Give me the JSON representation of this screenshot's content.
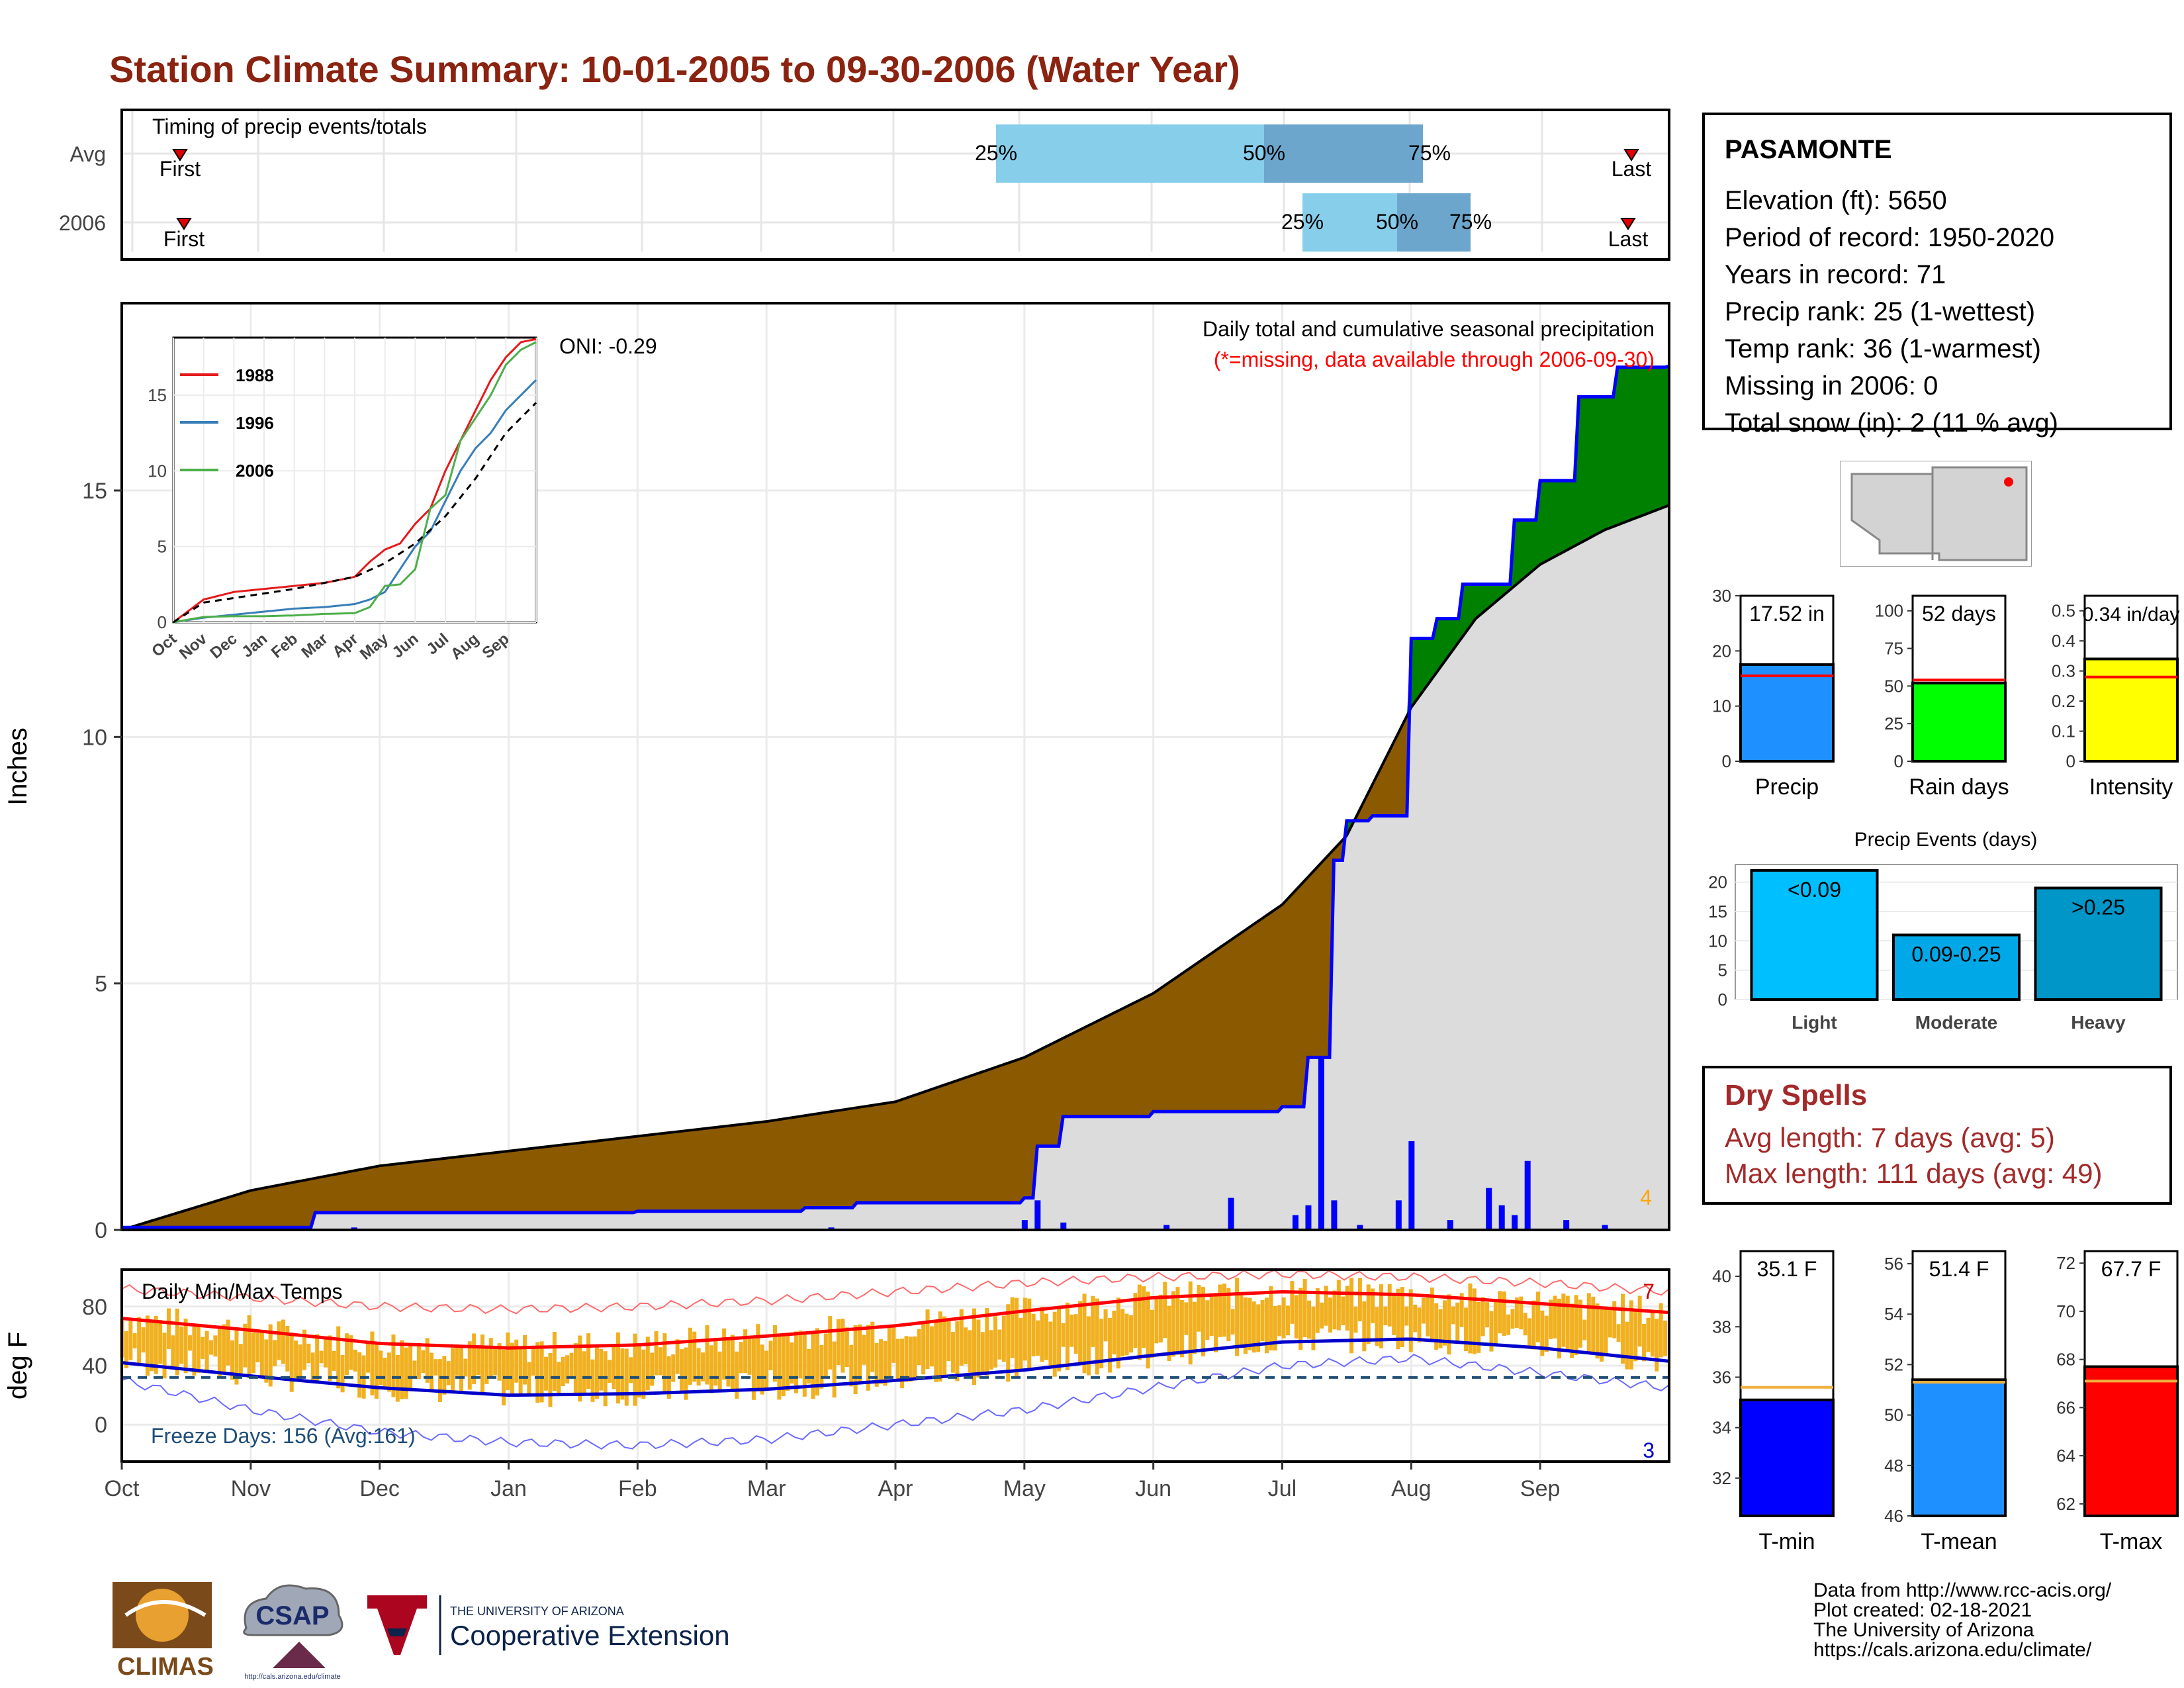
{
  "title": "Station Climate Summary: 10-01-2005 to 09-30-2006 (Water Year)",
  "colors": {
    "title": "#8b2310",
    "wetter": "#008000",
    "drier": "#8b5a00",
    "avg_fill": "#dcdcdc",
    "precip_bar": "#1e90ff",
    "raindays_bar": "#00ff00",
    "intensity_bar": "#ffff00",
    "tmin": "#0000ff",
    "tmean": "#1e90ff",
    "tmax": "#ff0000",
    "temp_bars": "#f0b020",
    "light": "#00bfff",
    "moderate": "#00a8e8",
    "heavy": "#0096c8"
  },
  "timing_panel": {
    "title": "Timing of precip events/totals",
    "rows": [
      {
        "label": "Avg",
        "first": "First",
        "last": "Last",
        "p25": "25%",
        "p50": "50%",
        "p75": "75%"
      },
      {
        "label": "2006",
        "first": "First",
        "last": "Last",
        "p25": "25%",
        "p50": "50%",
        "p75": "75%"
      }
    ]
  },
  "station": {
    "name": "PASAMONTE",
    "elevation": "Elevation (ft): 5650",
    "period": "Period of record: 1950-2020",
    "years": "Years in record: 71",
    "precip_rank": "Precip rank: 25 (1-wettest)",
    "temp_rank": "Temp rank: 36 (1-warmest)",
    "missing": "Missing in 2006: 0",
    "snow": "Total snow (in): 2 (11 % avg)"
  },
  "main_panel": {
    "ylabel": "Inches",
    "oni": "ONI: -0.29",
    "subtitle": "Daily total and cumulative seasonal precipitation",
    "missing_note": "(*=missing, data available through 2006-09-30)",
    "max_marker": "4"
  },
  "temp_panel": {
    "ylabel": "deg F",
    "title": "Daily Min/Max Temps",
    "freeze": "Freeze Days: 156 (Avg:161)",
    "count_high": "7",
    "count_low": "3"
  },
  "month_labels": [
    "Oct",
    "Nov",
    "Dec",
    "Jan",
    "Feb",
    "Mar",
    "Apr",
    "May",
    "Jun",
    "Jul",
    "Aug",
    "Sep"
  ],
  "chart_data": [
    {
      "type": "line",
      "name": "cumulative precipitation",
      "ylabel": "Inches",
      "ylim": [
        0,
        18.8
      ],
      "yticks": [
        0,
        5,
        10,
        15
      ],
      "x_unit": "month",
      "observed_2006": {
        "x": [
          0,
          1.5,
          2.0,
          4,
          5.3,
          5.7,
          7.0,
          7.1,
          7.3,
          8,
          9,
          9.2,
          9.4,
          9.5,
          9.7,
          10.0,
          10.2,
          10.4,
          10.8,
          11.0,
          11.3,
          11.6,
          12
        ],
        "y": [
          0.05,
          0.35,
          0.35,
          0.38,
          0.45,
          0.55,
          0.65,
          1.7,
          2.3,
          2.4,
          2.5,
          3.5,
          7.5,
          8.3,
          8.4,
          12.0,
          12.4,
          13.1,
          14.4,
          15.2,
          16.9,
          17.5,
          17.52
        ]
      },
      "average": {
        "x": [
          0,
          1,
          2,
          3,
          4,
          5,
          6,
          7,
          8,
          9,
          9.5,
          10,
          10.5,
          11,
          11.5,
          12
        ],
        "y": [
          0,
          0.8,
          1.3,
          1.6,
          1.9,
          2.2,
          2.6,
          3.5,
          4.8,
          6.6,
          8.0,
          10.6,
          12.4,
          13.5,
          14.2,
          14.7
        ]
      },
      "daily_spikes": {
        "x": [
          1.8,
          5.5,
          7.0,
          7.1,
          7.3,
          8.1,
          8.6,
          9.1,
          9.2,
          9.3,
          9.4,
          9.6,
          9.9,
          10.0,
          10.3,
          10.6,
          10.7,
          10.8,
          10.9,
          11.2,
          11.5
        ],
        "y": [
          0.05,
          0.05,
          0.2,
          0.6,
          0.15,
          0.1,
          0.65,
          0.3,
          0.5,
          3.5,
          0.6,
          0.1,
          0.6,
          1.8,
          0.2,
          0.85,
          0.5,
          0.3,
          1.4,
          0.2,
          0.1
        ]
      },
      "series": [
        {
          "name": "1988"
        },
        {
          "name": "1996"
        },
        {
          "name": "2006"
        }
      ]
    },
    {
      "type": "line",
      "name": "inset cumulative precip comparison",
      "ylim": [
        0,
        18.8
      ],
      "yticks": [
        0,
        5,
        10,
        15
      ],
      "xticks": [
        "Oct",
        "Nov",
        "Dec",
        "Jan",
        "Feb",
        "Mar",
        "Apr",
        "May",
        "Jun",
        "Jul",
        "Aug",
        "Sep"
      ],
      "series": [
        {
          "name": "1988",
          "color": "#e41a1c",
          "x": [
            0,
            1,
            2,
            3,
            4,
            5,
            6,
            6.5,
            7,
            7.5,
            8,
            8.5,
            9,
            9.5,
            10,
            10.5,
            11,
            11.5,
            12
          ],
          "y": [
            0,
            1.5,
            2.0,
            2.2,
            2.4,
            2.6,
            3.0,
            4.0,
            4.8,
            5.2,
            6.5,
            7.5,
            10.0,
            12.0,
            14.0,
            16.0,
            17.5,
            18.5,
            18.7
          ]
        },
        {
          "name": "1996",
          "color": "#377eb8",
          "x": [
            0,
            1,
            2,
            3,
            4,
            5,
            6,
            6.5,
            7,
            7.5,
            8,
            8.5,
            9,
            9.5,
            10,
            10.5,
            11,
            11.5,
            12
          ],
          "y": [
            0,
            0.3,
            0.5,
            0.7,
            0.9,
            1.0,
            1.2,
            1.5,
            2.0,
            3.5,
            5.0,
            6.0,
            8.0,
            10.0,
            11.5,
            12.5,
            14.0,
            15.0,
            16.0
          ]
        },
        {
          "name": "2006",
          "color": "#4daf4a",
          "x": [
            0,
            1,
            2,
            3,
            4,
            5,
            6,
            6.5,
            7,
            7.5,
            8,
            8.5,
            9,
            9.5,
            10,
            10.5,
            11,
            11.5,
            12
          ],
          "y": [
            0,
            0.35,
            0.4,
            0.4,
            0.45,
            0.55,
            0.6,
            1.0,
            2.4,
            2.5,
            3.5,
            7.5,
            8.4,
            12.0,
            13.5,
            15.0,
            17.0,
            18.0,
            18.5
          ]
        },
        {
          "name": "average",
          "color": "#000000",
          "x": [
            0,
            1,
            2,
            3,
            4,
            5,
            6,
            7,
            8,
            9,
            10,
            11,
            12
          ],
          "y": [
            0,
            1.3,
            1.6,
            1.9,
            2.2,
            2.6,
            3.0,
            3.9,
            5.2,
            7.0,
            9.5,
            12.5,
            14.5
          ]
        }
      ]
    },
    {
      "type": "bar",
      "name": "Precip",
      "value": 17.52,
      "label": "17.52 in",
      "average": 15.5,
      "ylim": [
        0,
        30
      ],
      "yticks": [
        0,
        10,
        20,
        30
      ],
      "xlabel": "Precip"
    },
    {
      "type": "bar",
      "name": "Rain days",
      "value": 52,
      "label": "52 days",
      "average": 54,
      "ylim": [
        0,
        110
      ],
      "yticks": [
        0,
        25,
        50,
        75,
        100
      ],
      "xlabel": "Rain days"
    },
    {
      "type": "bar",
      "name": "Intensity",
      "value": 0.34,
      "label": "0.34 in/day",
      "average": 0.28,
      "ylim": [
        0,
        0.55
      ],
      "yticks": [
        0.0,
        0.1,
        0.2,
        0.3,
        0.4,
        0.5
      ],
      "xlabel": "Intensity"
    },
    {
      "type": "bar",
      "title": "Precip Events (days)",
      "categories": [
        "Light",
        "Moderate",
        "Heavy"
      ],
      "values": [
        22,
        11,
        19
      ],
      "labels": [
        "<0.09",
        "0.09-0.25",
        ">0.25"
      ],
      "ylim": [
        0,
        23
      ],
      "yticks": [
        0,
        5,
        10,
        15,
        20
      ]
    },
    {
      "type": "line",
      "name": "Daily Min/Max Temps",
      "ylabel": "deg F",
      "ylim": [
        -25,
        105
      ],
      "yticks": [
        0,
        40,
        80
      ],
      "avg_max": {
        "x": [
          0,
          1,
          2,
          3,
          4,
          5,
          6,
          7,
          8,
          9,
          10,
          11,
          12
        ],
        "y": [
          72,
          64,
          55,
          52,
          54,
          60,
          67,
          77,
          86,
          90,
          88,
          82,
          76
        ]
      },
      "avg_min": {
        "x": [
          0,
          1,
          2,
          3,
          4,
          5,
          6,
          7,
          8,
          9,
          10,
          11,
          12
        ],
        "y": [
          42,
          33,
          25,
          20,
          21,
          24,
          30,
          37,
          47,
          56,
          58,
          52,
          43
        ]
      },
      "record_max": {
        "x": [
          0,
          1,
          2,
          3,
          4,
          5,
          6,
          7,
          8,
          9,
          10,
          11,
          12
        ],
        "y": [
          92,
          86,
          80,
          78,
          80,
          84,
          90,
          96,
          100,
          102,
          100,
          96,
          90
        ]
      },
      "record_min": {
        "x": [
          0,
          1,
          2,
          3,
          4,
          5,
          6,
          7,
          8,
          9,
          10,
          11,
          12
        ],
        "y": [
          30,
          10,
          -5,
          -12,
          -14,
          -10,
          0,
          10,
          25,
          40,
          45,
          35,
          25
        ]
      },
      "freeze_threshold": 32
    },
    {
      "type": "bar",
      "name": "T-min",
      "value": 35.1,
      "label": "35.1 F",
      "average": 35.6,
      "ylim": [
        30.5,
        41
      ],
      "yticks": [
        32,
        34,
        36,
        38,
        40
      ],
      "xlabel": "T-min"
    },
    {
      "type": "bar",
      "name": "T-mean",
      "value": 51.4,
      "label": "51.4 F",
      "average": 51.3,
      "ylim": [
        46,
        56.5
      ],
      "yticks": [
        46,
        48,
        50,
        52,
        54,
        56
      ],
      "xlabel": "T-mean"
    },
    {
      "type": "bar",
      "name": "T-max",
      "value": 67.7,
      "label": "67.7 F",
      "average": 67.1,
      "ylim": [
        61.5,
        72.5
      ],
      "yticks": [
        62,
        64,
        66,
        68,
        70,
        72
      ],
      "xlabel": "T-max"
    }
  ],
  "dry_spells": {
    "title": "Dry Spells",
    "avg": "Avg length: 7 days (avg: 5)",
    "max": "Max length: 111 days (avg: 49)"
  },
  "footer": {
    "line1": "Data from http://www.rcc-acis.org/",
    "line2": "Plot created: 02-18-2021",
    "line3": "The University of Arizona",
    "line4": "https://cals.arizona.edu/climate/"
  },
  "logos": {
    "climas": "CLIMAS",
    "csap": "CSAP",
    "csap_url": "http://cals.arizona.edu/climate",
    "ua_top": "THE UNIVERSITY OF ARIZONA",
    "ua_bottom": "Cooperative Extension"
  }
}
